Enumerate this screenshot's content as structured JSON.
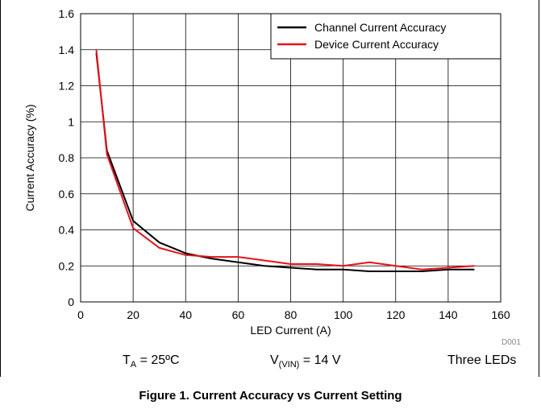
{
  "chart_data": {
    "type": "line",
    "xlabel": "LED Current (A)",
    "ylabel": "Current Accuracy (%)",
    "xlim": [
      0,
      160
    ],
    "ylim": [
      0,
      1.6
    ],
    "xticks": [
      "0",
      "20",
      "40",
      "60",
      "80",
      "100",
      "120",
      "140",
      "160"
    ],
    "yticks": [
      "0",
      "0.2",
      "0.4",
      "0.6",
      "0.8",
      "1",
      "1.2",
      "1.4",
      "1.6"
    ],
    "grid": true,
    "legend_position": "top-right",
    "series": [
      {
        "name": "Channel Current Accuracy",
        "color": "#000000",
        "x": [
          6,
          10,
          20,
          30,
          40,
          50,
          60,
          70,
          80,
          90,
          100,
          110,
          120,
          130,
          140,
          150
        ],
        "y": [
          1.38,
          0.84,
          0.45,
          0.33,
          0.27,
          0.24,
          0.22,
          0.2,
          0.19,
          0.18,
          0.18,
          0.17,
          0.17,
          0.17,
          0.18,
          0.18
        ]
      },
      {
        "name": "Device Current Accuracy",
        "color": "#e8121a",
        "x": [
          6,
          10,
          20,
          30,
          40,
          50,
          60,
          70,
          80,
          90,
          100,
          110,
          120,
          130,
          140,
          150
        ],
        "y": [
          1.4,
          0.82,
          0.41,
          0.3,
          0.26,
          0.25,
          0.25,
          0.23,
          0.21,
          0.21,
          0.2,
          0.22,
          0.2,
          0.18,
          0.19,
          0.2
        ]
      }
    ]
  },
  "conditions": {
    "ta_main": "T",
    "ta_sub": "A",
    "ta_rest": " = 25ºC",
    "vin_main": "V",
    "vin_sub": "(VIN)",
    "vin_rest": " = 14 V",
    "leds": "Three LEDs"
  },
  "figure_id": "D001",
  "caption": "Figure 1. Current Accuracy vs Current Setting"
}
